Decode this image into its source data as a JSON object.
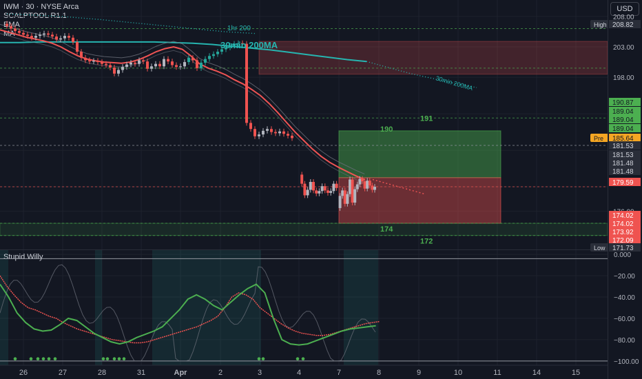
{
  "header": {
    "symbol": "IWM · 30 · NYSE Arca",
    "indicators": [
      "SCALPTOOL R1.1",
      "EMA",
      "MA"
    ],
    "currency_button": "USD"
  },
  "colors": {
    "background": "#131722",
    "grid": "#1e222d",
    "up": "#26a69a",
    "down": "#ef5350",
    "neutral": "#9598a1",
    "ma200": "#26b5b0",
    "ema": "#f05454",
    "green": "#4caf50",
    "orange": "#f5a623"
  },
  "chart_data": [
    {
      "type": "candlestick",
      "ylim": [
        169.7,
        210.7
      ],
      "x_tick_labels": [
        "26",
        "27",
        "28",
        "31",
        "Apr",
        "2",
        "3",
        "4",
        "7",
        "8",
        "9",
        "10",
        "11",
        "14",
        "15"
      ],
      "y_tick_labels": [
        "208.00",
        "203.00",
        "198.00",
        "176.00"
      ],
      "price_badges": [
        {
          "label": "High",
          "value": "208.82",
          "kind": "high"
        },
        {
          "value": "190.87",
          "kind": "green"
        },
        {
          "value": "189.04",
          "kind": "green"
        },
        {
          "value": "189.04",
          "kind": "green"
        },
        {
          "value": "189.04",
          "kind": "green"
        },
        {
          "label": "Pre",
          "value": "185.64",
          "kind": "pre"
        },
        {
          "value": "181.53",
          "kind": "gray"
        },
        {
          "value": "181.53",
          "kind": "gray"
        },
        {
          "value": "181.48",
          "kind": "gray"
        },
        {
          "value": "181.48",
          "kind": "gray"
        },
        {
          "value": "179.59",
          "kind": "red"
        },
        {
          "value": "174.02",
          "kind": "red"
        },
        {
          "value": "174.02",
          "kind": "red"
        },
        {
          "value": "173.92",
          "kind": "red"
        },
        {
          "value": "172.09",
          "kind": "red"
        },
        {
          "label": "Low",
          "value": "171.73",
          "kind": "low"
        }
      ],
      "level_labels": [
        "191",
        "190",
        "174",
        "172"
      ],
      "annotations": [
        "1hr 200",
        "30min 200MA",
        "30min 200MA"
      ],
      "price_series_close": [
        206.8,
        206.4,
        206.0,
        205.6,
        205.3,
        205.0,
        204.8,
        204.5,
        204.8,
        205.0,
        205.2,
        205.0,
        204.7,
        204.2,
        204.4,
        204.8,
        204.5,
        203.8,
        202.2,
        201.2,
        200.8,
        200.6,
        200.7,
        200.5,
        200.2,
        200.0,
        199.6,
        198.6,
        199.2,
        199.7,
        200.1,
        200.4,
        200.2,
        200.8,
        200.6,
        199.4,
        199.8,
        200.2,
        199.8,
        201.0,
        200.6,
        200.0,
        199.7,
        199.8,
        200.5,
        201.2,
        200.8,
        199.5,
        200.4,
        201.0,
        201.5,
        201.8,
        202.2,
        202.6,
        202.9,
        203.2,
        203.5,
        203.6,
        203.5,
        190.5,
        189.5,
        188.3,
        188.6,
        189.2,
        189.5,
        189.0,
        188.8,
        189.1,
        188.7,
        188.4,
        188.0
      ],
      "price_series_close_day2": [
        182.0,
        180.5,
        178.6,
        179.5,
        180.8,
        179.4,
        178.9,
        179.3,
        180.1,
        179.4,
        179.0,
        179.3,
        180.5,
        179.8
      ],
      "price_series_close_day3": [
        176.5,
        178.5,
        179.4,
        177.2,
        178.8,
        181.2,
        177.4,
        179.6,
        180.4,
        181.3,
        180.9,
        179.7,
        181.0,
        180.2,
        179.5,
        180.0
      ],
      "ema_series": [
        205.8,
        205.4,
        205.0,
        204.6,
        204.3,
        204.0,
        203.6,
        203.0,
        202.2,
        201.5,
        201.0,
        200.7,
        200.5,
        200.4,
        200.3,
        200.5,
        200.9,
        201.5,
        202.2,
        202.7,
        203.0,
        202.6,
        201.5,
        200.2,
        199.5,
        199.0,
        198.4,
        197.6,
        196.9,
        196.0,
        195.0,
        193.7,
        192.2,
        190.6,
        189.0,
        187.6,
        186.2,
        185.0,
        184.0,
        183.2,
        182.5,
        181.8,
        181.2
      ],
      "ma200_series": [
        203.7,
        203.7,
        203.8,
        203.8,
        203.8,
        203.8,
        203.8,
        203.8,
        203.8,
        203.7,
        203.6,
        203.4,
        203.1,
        202.8,
        202.5,
        202.1,
        201.7,
        201.3,
        200.9,
        200.6
      ],
      "ma1hr_series": [
        208.4,
        208.2,
        207.9,
        207.5,
        207.0,
        206.5,
        206.0,
        205.5,
        205.2
      ],
      "zones": [
        {
          "kind": "red-upper",
          "from": 198.5,
          "to": 203.9
        },
        {
          "kind": "green-trade",
          "from": 181.5,
          "to": 189.2
        },
        {
          "kind": "red-trade",
          "from": 174.0,
          "to": 181.5
        },
        {
          "kind": "green-lower",
          "from": 172.0,
          "to": 174.0
        }
      ]
    },
    {
      "type": "line",
      "title": "Stupid Willy",
      "ylim": [
        -104,
        4
      ],
      "y_tick_labels": [
        "0.000",
        "−20.00",
        "−40.00",
        "−60.00",
        "−80.00",
        "−100.00"
      ],
      "series": [
        {
          "values": [
            -20,
            -30,
            -38,
            -45,
            -50,
            -52,
            -55,
            -58,
            -60,
            -64,
            -67,
            -70,
            -72,
            -74,
            -76,
            -78,
            -80,
            -81,
            -82,
            -83,
            -83,
            -82,
            -80,
            -78,
            -76,
            -74,
            -72,
            -70,
            -68,
            -65,
            -62,
            -58,
            -50,
            -40,
            -36,
            -38,
            -42,
            -50,
            -55,
            -60,
            -65,
            -69,
            -72,
            -74,
            -75,
            -76,
            -76,
            -75,
            -73,
            -71,
            -69,
            -67,
            -65,
            -64,
            -63
          ]
        },
        {
          "values": [
            -28,
            -40,
            -55,
            -64,
            -70,
            -72,
            -71,
            -66,
            -60,
            -62,
            -68,
            -74,
            -78,
            -82,
            -84,
            -82,
            -78,
            -75,
            -72,
            -68,
            -60,
            -52,
            -42,
            -38,
            -42,
            -48,
            -52,
            -45,
            -38,
            -32,
            -28,
            -36,
            -60,
            -80,
            -84,
            -85,
            -84,
            -81,
            -78,
            -75,
            -72,
            -70,
            -69,
            -68,
            -67
          ]
        }
      ]
    }
  ]
}
